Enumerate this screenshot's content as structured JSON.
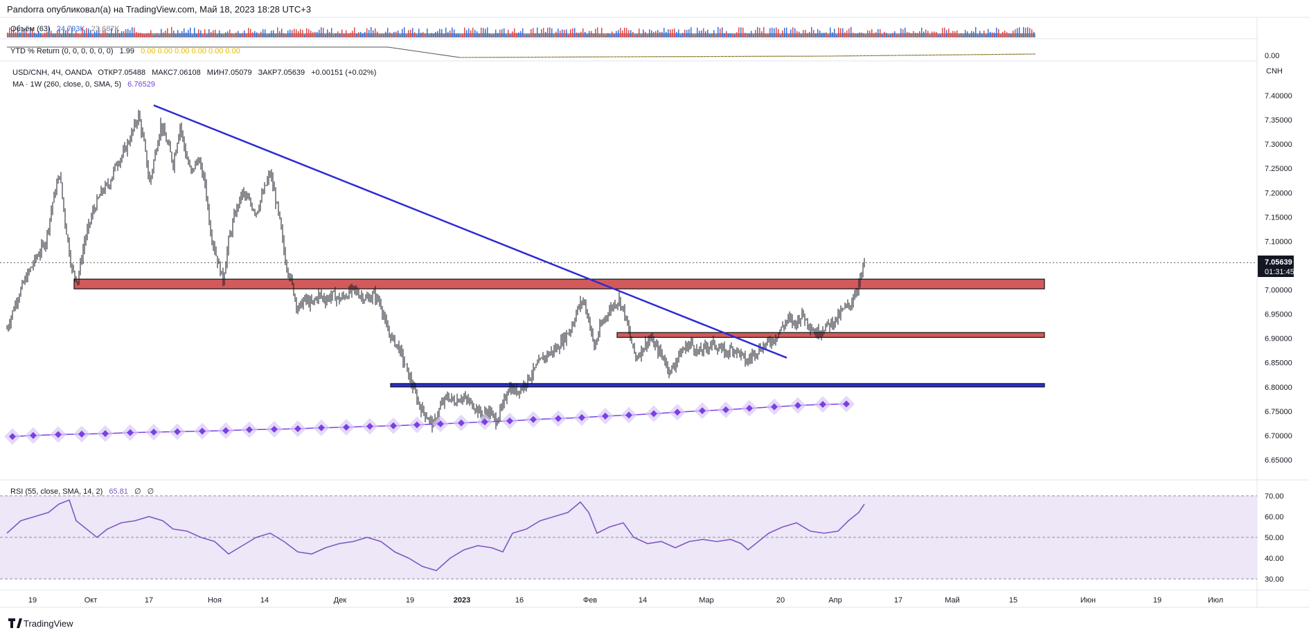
{
  "header": {
    "publisher": "Pandorra опубликовал(а) на TradingView.com, Май 18, 2023 18:28 UTC+3"
  },
  "volume_pane": {
    "label": "Объём (63)",
    "value1": "24.793K",
    "value2": "23.687K"
  },
  "ytd_pane": {
    "label": "YTD % Return (0, 0, 0, 0, 0, 0)",
    "value": "1.99",
    "zeros": "0.00  0.00  0.00  0.00  0.00  0.00",
    "axis_value": "0.00"
  },
  "main_pane": {
    "symbol_line": "USD/CNH, 4Ч, OANDA",
    "open": "ОТКР7.05488",
    "high": "МАКС7.06108",
    "low": "МИН7.05079",
    "close": "ЗАКР7.05639",
    "change": "+0.00151 (+0.02%)",
    "ma_label": "MA · 1W (260, close, 0, SMA, 5)",
    "ma_value": "6.76529",
    "currency": "CNH",
    "last_price": "7.05639",
    "countdown": "01:31:45"
  },
  "rsi_pane": {
    "label": "RSI (55, close, SMA, 14, 2)",
    "value": "65.81",
    "z1": "∅",
    "z2": "∅"
  },
  "footer": {
    "brand": "TradingView"
  },
  "colors": {
    "candle": "#131722",
    "trendline": "#2b2bd6",
    "red_zone": "#d35a5a",
    "blue_zone": "#2a2fd4",
    "ma": "#7b3fe4",
    "ma_halo": "#d9c9f5",
    "rsi_line": "#7e57c2",
    "rsi_band": "#ede7f8",
    "vol_up": "#3a6fd8",
    "vol_down": "#e04848",
    "ytd_line": "#b8a23a"
  },
  "chart_data": {
    "type": "candlestick",
    "symbol": "USD/CNH",
    "interval": "4Ч",
    "y_ticks": [
      7.4,
      7.35,
      7.3,
      7.25,
      7.2,
      7.15,
      7.1,
      7.05,
      7.0,
      6.95,
      6.9,
      6.85,
      6.8,
      6.75,
      6.7,
      6.65
    ],
    "y_range": [
      6.62,
      7.44
    ],
    "x_tick_labels": [
      "19",
      "Окт",
      "17",
      "Ноя",
      "14",
      "Дек",
      "19",
      "2023",
      "16",
      "Фев",
      "14",
      "Мар",
      "20",
      "Апр",
      "17",
      "Май",
      "15",
      "Июн",
      "19",
      "Июл"
    ],
    "close_path": [
      [
        0,
        6.92
      ],
      [
        14,
        6.98
      ],
      [
        26,
        7.02
      ],
      [
        40,
        7.06
      ],
      [
        56,
        7.1
      ],
      [
        66,
        7.18
      ],
      [
        76,
        7.24
      ],
      [
        84,
        7.14
      ],
      [
        94,
        7.04
      ],
      [
        102,
        7.02
      ],
      [
        112,
        7.1
      ],
      [
        124,
        7.16
      ],
      [
        136,
        7.2
      ],
      [
        148,
        7.22
      ],
      [
        158,
        7.26
      ],
      [
        168,
        7.28
      ],
      [
        180,
        7.32
      ],
      [
        190,
        7.36
      ],
      [
        198,
        7.3
      ],
      [
        206,
        7.22
      ],
      [
        214,
        7.28
      ],
      [
        222,
        7.34
      ],
      [
        232,
        7.3
      ],
      [
        240,
        7.26
      ],
      [
        250,
        7.34
      ],
      [
        258,
        7.28
      ],
      [
        266,
        7.24
      ],
      [
        276,
        7.27
      ],
      [
        286,
        7.22
      ],
      [
        294,
        7.12
      ],
      [
        304,
        7.06
      ],
      [
        312,
        7.02
      ],
      [
        320,
        7.1
      ],
      [
        330,
        7.16
      ],
      [
        340,
        7.2
      ],
      [
        350,
        7.18
      ],
      [
        360,
        7.16
      ],
      [
        370,
        7.2
      ],
      [
        380,
        7.24
      ],
      [
        386,
        7.2
      ],
      [
        394,
        7.14
      ],
      [
        402,
        7.06
      ],
      [
        410,
        7.02
      ],
      [
        420,
        6.96
      ],
      [
        430,
        6.98
      ],
      [
        440,
        6.97
      ],
      [
        450,
        6.99
      ],
      [
        460,
        6.98
      ],
      [
        470,
        6.99
      ],
      [
        480,
        6.98
      ],
      [
        490,
        6.99
      ],
      [
        500,
        7.0
      ],
      [
        510,
        6.99
      ],
      [
        520,
        6.98
      ],
      [
        530,
        6.99
      ],
      [
        540,
        6.97
      ],
      [
        548,
        6.92
      ],
      [
        556,
        6.9
      ],
      [
        566,
        6.88
      ],
      [
        576,
        6.84
      ],
      [
        586,
        6.8
      ],
      [
        596,
        6.76
      ],
      [
        606,
        6.74
      ],
      [
        616,
        6.72
      ],
      [
        626,
        6.76
      ],
      [
        636,
        6.78
      ],
      [
        646,
        6.77
      ],
      [
        656,
        6.78
      ],
      [
        666,
        6.77
      ],
      [
        676,
        6.76
      ],
      [
        686,
        6.74
      ],
      [
        696,
        6.75
      ],
      [
        706,
        6.73
      ],
      [
        716,
        6.76
      ],
      [
        724,
        6.8
      ],
      [
        734,
        6.79
      ],
      [
        744,
        6.8
      ],
      [
        754,
        6.82
      ],
      [
        764,
        6.84
      ],
      [
        774,
        6.86
      ],
      [
        784,
        6.87
      ],
      [
        794,
        6.88
      ],
      [
        804,
        6.9
      ],
      [
        814,
        6.92
      ],
      [
        824,
        6.96
      ],
      [
        832,
        6.98
      ],
      [
        840,
        6.94
      ],
      [
        848,
        6.88
      ],
      [
        856,
        6.92
      ],
      [
        866,
        6.95
      ],
      [
        876,
        6.97
      ],
      [
        884,
        6.98
      ],
      [
        892,
        6.95
      ],
      [
        900,
        6.9
      ],
      [
        908,
        6.86
      ],
      [
        918,
        6.88
      ],
      [
        928,
        6.9
      ],
      [
        938,
        6.88
      ],
      [
        948,
        6.86
      ],
      [
        958,
        6.83
      ],
      [
        968,
        6.86
      ],
      [
        978,
        6.88
      ],
      [
        988,
        6.89
      ],
      [
        998,
        6.87
      ],
      [
        1008,
        6.88
      ],
      [
        1018,
        6.89
      ],
      [
        1028,
        6.88
      ],
      [
        1038,
        6.87
      ],
      [
        1048,
        6.88
      ],
      [
        1058,
        6.87
      ],
      [
        1068,
        6.85
      ],
      [
        1078,
        6.87
      ],
      [
        1088,
        6.88
      ],
      [
        1098,
        6.89
      ],
      [
        1108,
        6.9
      ],
      [
        1118,
        6.92
      ],
      [
        1128,
        6.94
      ],
      [
        1138,
        6.93
      ],
      [
        1148,
        6.95
      ],
      [
        1158,
        6.93
      ],
      [
        1168,
        6.91
      ],
      [
        1178,
        6.92
      ],
      [
        1188,
        6.93
      ],
      [
        1198,
        6.94
      ],
      [
        1208,
        6.96
      ],
      [
        1218,
        6.97
      ],
      [
        1226,
        7.0
      ],
      [
        1232,
        7.02
      ],
      [
        1238,
        7.056
      ]
    ],
    "trendline": {
      "from": [
        212,
        7.38
      ],
      "to": [
        1126,
        6.86
      ]
    },
    "zones": [
      {
        "name": "red-zone-1",
        "x": [
          107,
          1508
        ],
        "y": [
          7.022,
          7.002
        ],
        "color": "red"
      },
      {
        "name": "red-zone-2",
        "x": [
          891,
          1508
        ],
        "y": [
          6.912,
          6.902
        ],
        "color": "red"
      },
      {
        "name": "blue-zone-1",
        "x": [
          564,
          1508
        ],
        "y": [
          6.807,
          6.8
        ],
        "color": "blue"
      }
    ],
    "ma_1w": [
      [
        8,
        6.698
      ],
      [
        38,
        6.7
      ],
      [
        74,
        6.702
      ],
      [
        108,
        6.703
      ],
      [
        142,
        6.704
      ],
      [
        178,
        6.706
      ],
      [
        212,
        6.707
      ],
      [
        246,
        6.708
      ],
      [
        282,
        6.709
      ],
      [
        316,
        6.71
      ],
      [
        350,
        6.712
      ],
      [
        386,
        6.713
      ],
      [
        420,
        6.714
      ],
      [
        454,
        6.716
      ],
      [
        490,
        6.717
      ],
      [
        524,
        6.719
      ],
      [
        558,
        6.72
      ],
      [
        592,
        6.722
      ],
      [
        626,
        6.724
      ],
      [
        656,
        6.726
      ],
      [
        690,
        6.728
      ],
      [
        726,
        6.73
      ],
      [
        760,
        6.733
      ],
      [
        796,
        6.735
      ],
      [
        830,
        6.737
      ],
      [
        864,
        6.74
      ],
      [
        898,
        6.742
      ],
      [
        934,
        6.745
      ],
      [
        968,
        6.748
      ],
      [
        1004,
        6.751
      ],
      [
        1038,
        6.753
      ],
      [
        1072,
        6.756
      ],
      [
        1108,
        6.759
      ],
      [
        1142,
        6.762
      ],
      [
        1178,
        6.764
      ],
      [
        1212,
        6.765
      ]
    ],
    "rsi": {
      "levels": [
        70,
        50,
        30
      ],
      "y_ticks": [
        70.0,
        60.0,
        50.0,
        40.0,
        30.0
      ],
      "values": [
        [
          0,
          52
        ],
        [
          20,
          58
        ],
        [
          40,
          60
        ],
        [
          60,
          62
        ],
        [
          75,
          66
        ],
        [
          90,
          68
        ],
        [
          100,
          58
        ],
        [
          115,
          54
        ],
        [
          130,
          50
        ],
        [
          145,
          54
        ],
        [
          165,
          57
        ],
        [
          185,
          58
        ],
        [
          205,
          60
        ],
        [
          225,
          58
        ],
        [
          240,
          54
        ],
        [
          260,
          53
        ],
        [
          280,
          50
        ],
        [
          300,
          48
        ],
        [
          320,
          42
        ],
        [
          340,
          46
        ],
        [
          360,
          50
        ],
        [
          380,
          52
        ],
        [
          400,
          48
        ],
        [
          420,
          43
        ],
        [
          440,
          42
        ],
        [
          460,
          45
        ],
        [
          480,
          47
        ],
        [
          500,
          48
        ],
        [
          520,
          50
        ],
        [
          540,
          48
        ],
        [
          560,
          43
        ],
        [
          580,
          40
        ],
        [
          600,
          36
        ],
        [
          620,
          34
        ],
        [
          640,
          40
        ],
        [
          660,
          44
        ],
        [
          680,
          46
        ],
        [
          700,
          45
        ],
        [
          716,
          43
        ],
        [
          730,
          52
        ],
        [
          750,
          54
        ],
        [
          770,
          58
        ],
        [
          790,
          60
        ],
        [
          810,
          62
        ],
        [
          828,
          67
        ],
        [
          840,
          62
        ],
        [
          852,
          52
        ],
        [
          870,
          55
        ],
        [
          890,
          57
        ],
        [
          905,
          50
        ],
        [
          925,
          47
        ],
        [
          945,
          48
        ],
        [
          965,
          45
        ],
        [
          985,
          48
        ],
        [
          1005,
          49
        ],
        [
          1025,
          48
        ],
        [
          1045,
          49
        ],
        [
          1060,
          47
        ],
        [
          1070,
          44
        ],
        [
          1085,
          48
        ],
        [
          1100,
          52
        ],
        [
          1120,
          55
        ],
        [
          1140,
          57
        ],
        [
          1160,
          53
        ],
        [
          1180,
          52
        ],
        [
          1200,
          53
        ],
        [
          1215,
          58
        ],
        [
          1230,
          62
        ],
        [
          1238,
          66
        ]
      ]
    }
  }
}
